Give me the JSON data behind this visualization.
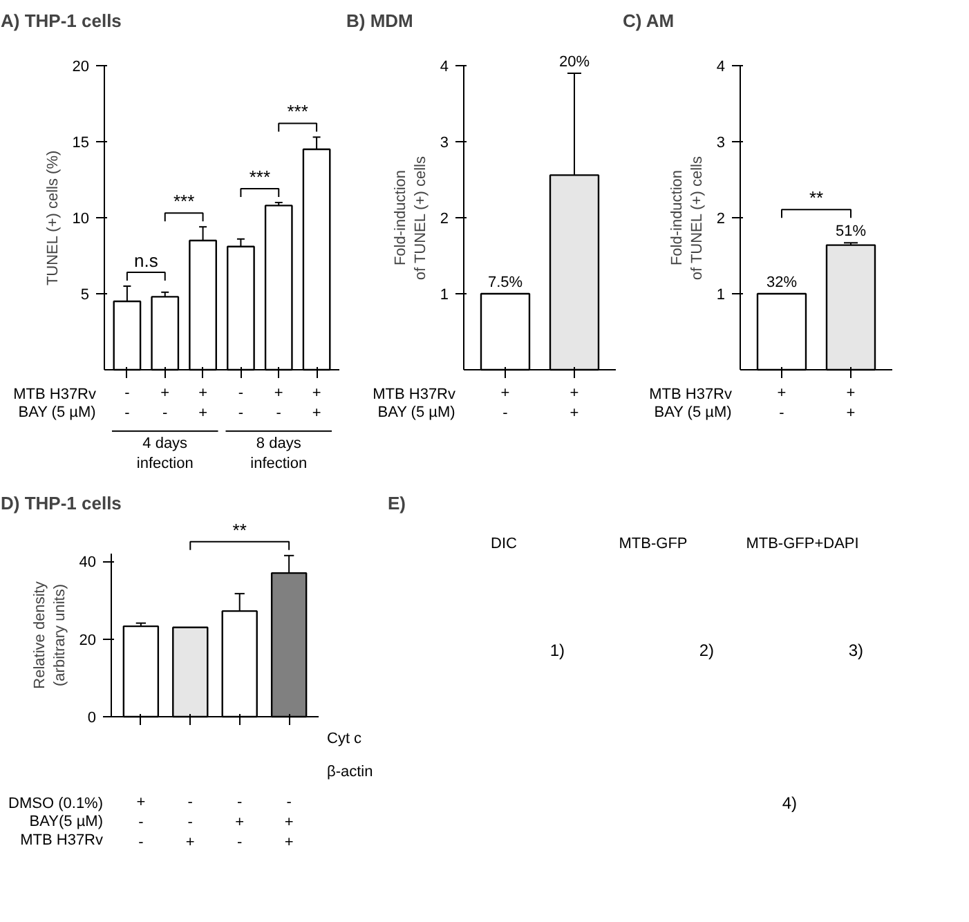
{
  "chart_data": [
    {
      "type": "bar",
      "title": "A) THP-1 cells",
      "ylabel": "TUNEL (+) cells (%)",
      "categories": [
        "-\n-",
        "+\n-",
        "+\n+",
        "-\n-",
        "+\n-",
        "+\n+"
      ],
      "values": [
        4.5,
        4.8,
        8.5,
        8.1,
        10.8,
        14.5
      ],
      "errors": [
        1.0,
        0.3,
        0.9,
        0.5,
        0.2,
        0.8
      ],
      "color": "#ffffff",
      "ylim": [
        0,
        20
      ],
      "yticks": [
        5,
        10,
        15,
        20
      ],
      "annotations": [
        "n.s",
        "***",
        "***",
        "***",
        "MTB H37Rv",
        "BAY (5 µM)",
        "4 days infection",
        "8 days infection"
      ]
    },
    {
      "type": "bar",
      "title": "B) MDM",
      "ylabel": "Fold-induction\nof TUNEL (+) cells",
      "categories": [
        "+\n-",
        "+\n+"
      ],
      "values": [
        1.0,
        2.56
      ],
      "errors": [
        null,
        1.34
      ],
      "colors": [
        "#ffffff",
        "#e6e6e6"
      ],
      "ylim": [
        0,
        4
      ],
      "yticks": [
        1,
        2,
        3,
        4
      ],
      "annotations": [
        {
          "text": "7.5%",
          "x": "+\n-",
          "y": 1.0
        },
        {
          "text": "20%",
          "x": "+\n+",
          "y": 3.9
        },
        "MTB H37Rv",
        "BAY (5 µM)"
      ]
    },
    {
      "type": "bar",
      "title": "C) AM",
      "ylabel": "Fold-induction\nof TUNEL (+) cells",
      "categories": [
        "+\n-",
        "+\n+"
      ],
      "values": [
        1.0,
        1.64
      ],
      "errors": [
        null,
        0.03
      ],
      "colors": [
        "#ffffff",
        "#e6e6e6"
      ],
      "ylim": [
        0,
        4
      ],
      "yticks": [
        1,
        2,
        3,
        4
      ],
      "annotations": [
        "**",
        {
          "text": "32%",
          "x": "+\n-",
          "y": 1.0
        },
        {
          "text": "51%",
          "x": "+\n+",
          "y": 1.67
        },
        "MTB H37Rv",
        "BAY (5 µM)"
      ]
    },
    {
      "type": "bar",
      "title": "D) THP-1 cells",
      "ylabel": "Relative density\n(arbitrary units)",
      "categories": [
        "+\n-\n-",
        "-\n-\n+",
        "-\n+\n-",
        "-\n+\n+"
      ],
      "values": [
        23.3,
        23.0,
        27.2,
        37.0
      ],
      "errors": [
        0.8,
        null,
        4.5,
        4.5
      ],
      "colors": [
        "#ffffff",
        "#e6e6e6",
        "#ffffff",
        "#808080"
      ],
      "ylim": [
        0,
        42
      ],
      "yticks": [
        0,
        20,
        40
      ],
      "annotations": [
        "**",
        "Cyt c",
        "β-actin",
        "DMSO (0.1%)",
        "BAY(5 µM)",
        "MTB H37Rv"
      ]
    },
    {
      "type": "other",
      "title": "E)",
      "annotations": [
        "DIC",
        "MTB-GFP",
        "MTB-GFP+DAPI",
        "1)",
        "2)",
        "3)",
        "4)"
      ]
    }
  ]
}
